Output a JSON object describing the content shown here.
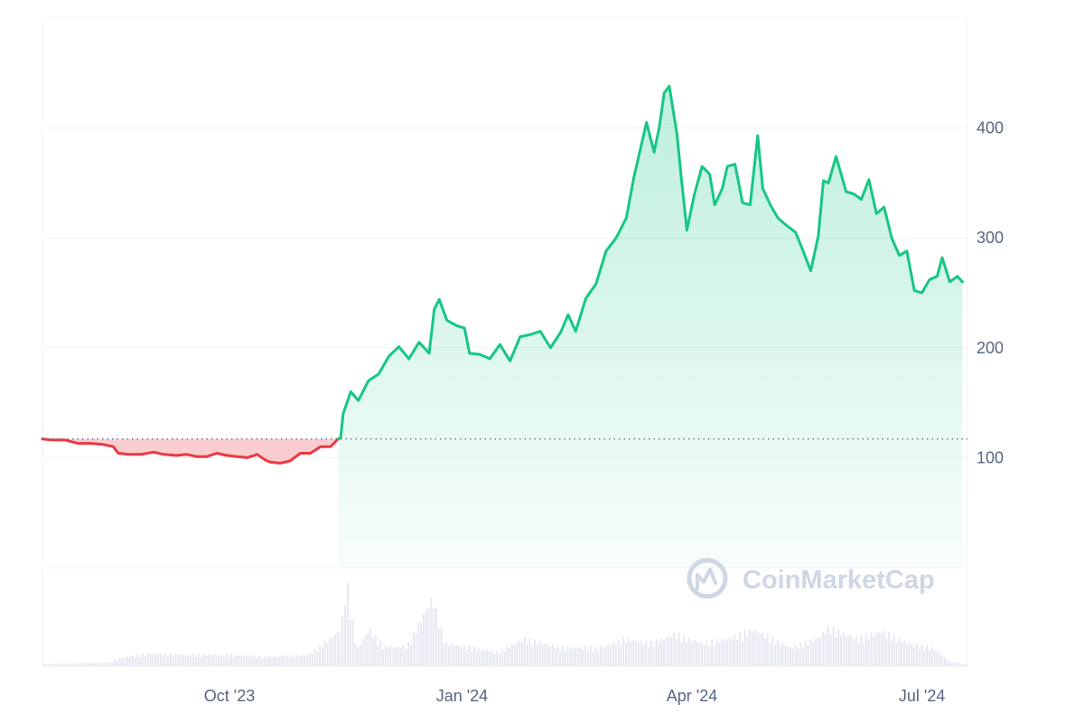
{
  "watermark": {
    "text": "CoinMarketCap",
    "icon": "coinmarketcap-logo-icon"
  },
  "colors": {
    "up_line": "#16c784",
    "down_line": "#ea3943",
    "up_fill": "#16c784",
    "down_fill": "#ea3943",
    "grid": "#eff2f5",
    "volume": "#cfd6e4",
    "baseline": "#58667e"
  },
  "chart_data": {
    "type": "area",
    "x_range": [
      "2023-07-19",
      "2024-07-19"
    ],
    "ylim": [
      0,
      500
    ],
    "grid": true,
    "legend": "none",
    "baseline": 117,
    "y_ticks": [
      {
        "value": 100,
        "label": "100"
      },
      {
        "value": 200,
        "label": "200"
      },
      {
        "value": 300,
        "label": "300"
      },
      {
        "value": 400,
        "label": "400"
      }
    ],
    "x_ticks": [
      {
        "date": "2023-10-01",
        "label": "Oct '23"
      },
      {
        "date": "2024-01-01",
        "label": "Jan '24"
      },
      {
        "date": "2024-04-01",
        "label": "Apr '24"
      },
      {
        "date": "2024-07-01",
        "label": "Jul '24"
      }
    ],
    "series": [
      {
        "values": [
          [
            "2023-07-19",
            117
          ],
          [
            "2023-07-23",
            116
          ],
          [
            "2023-07-28",
            116
          ],
          [
            "2023-08-02",
            113
          ],
          [
            "2023-08-07",
            113
          ],
          [
            "2023-08-12",
            112
          ],
          [
            "2023-08-16",
            110
          ],
          [
            "2023-08-18",
            104
          ],
          [
            "2023-08-22",
            103
          ],
          [
            "2023-08-27",
            103
          ],
          [
            "2023-09-01",
            105
          ],
          [
            "2023-09-05",
            103
          ],
          [
            "2023-09-10",
            102
          ],
          [
            "2023-09-14",
            103
          ],
          [
            "2023-09-18",
            101
          ],
          [
            "2023-09-22",
            101
          ],
          [
            "2023-09-26",
            104
          ],
          [
            "2023-09-30",
            102
          ],
          [
            "2023-10-04",
            101
          ],
          [
            "2023-10-08",
            100
          ],
          [
            "2023-10-12",
            103
          ],
          [
            "2023-10-15",
            98
          ],
          [
            "2023-10-17",
            96
          ],
          [
            "2023-10-21",
            95
          ],
          [
            "2023-10-25",
            97
          ],
          [
            "2023-10-29",
            104
          ],
          [
            "2023-11-02",
            104
          ],
          [
            "2023-11-06",
            110
          ],
          [
            "2023-11-10",
            110
          ],
          [
            "2023-11-13",
            117
          ],
          [
            "2023-11-14",
            118
          ],
          [
            "2023-11-15",
            140
          ],
          [
            "2023-11-18",
            160
          ],
          [
            "2023-11-21",
            152
          ],
          [
            "2023-11-25",
            170
          ],
          [
            "2023-11-29",
            176
          ],
          [
            "2023-12-03",
            192
          ],
          [
            "2023-12-07",
            201
          ],
          [
            "2023-12-11",
            190
          ],
          [
            "2023-12-15",
            205
          ],
          [
            "2023-12-19",
            195
          ],
          [
            "2023-12-21",
            235
          ],
          [
            "2023-12-23",
            244
          ],
          [
            "2023-12-26",
            225
          ],
          [
            "2023-12-30",
            220
          ],
          [
            "2024-01-02",
            218
          ],
          [
            "2024-01-04",
            195
          ],
          [
            "2024-01-08",
            194
          ],
          [
            "2024-01-12",
            190
          ],
          [
            "2024-01-16",
            203
          ],
          [
            "2024-01-20",
            188
          ],
          [
            "2024-01-24",
            210
          ],
          [
            "2024-01-28",
            212
          ],
          [
            "2024-02-01",
            215
          ],
          [
            "2024-02-05",
            200
          ],
          [
            "2024-02-09",
            214
          ],
          [
            "2024-02-12",
            230
          ],
          [
            "2024-02-15",
            215
          ],
          [
            "2024-02-19",
            245
          ],
          [
            "2024-02-23",
            258
          ],
          [
            "2024-02-27",
            288
          ],
          [
            "2024-03-02",
            300
          ],
          [
            "2024-03-06",
            318
          ],
          [
            "2024-03-09",
            355
          ],
          [
            "2024-03-12",
            385
          ],
          [
            "2024-03-14",
            405
          ],
          [
            "2024-03-17",
            378
          ],
          [
            "2024-03-19",
            400
          ],
          [
            "2024-03-21",
            432
          ],
          [
            "2024-03-23",
            438
          ],
          [
            "2024-03-26",
            395
          ],
          [
            "2024-03-28",
            350
          ],
          [
            "2024-03-30",
            307
          ],
          [
            "2024-04-02",
            340
          ],
          [
            "2024-04-05",
            365
          ],
          [
            "2024-04-08",
            358
          ],
          [
            "2024-04-10",
            330
          ],
          [
            "2024-04-13",
            345
          ],
          [
            "2024-04-15",
            365
          ],
          [
            "2024-04-18",
            367
          ],
          [
            "2024-04-21",
            332
          ],
          [
            "2024-04-24",
            330
          ],
          [
            "2024-04-27",
            393
          ],
          [
            "2024-04-29",
            345
          ],
          [
            "2024-05-02",
            330
          ],
          [
            "2024-05-05",
            318
          ],
          [
            "2024-05-08",
            312
          ],
          [
            "2024-05-12",
            305
          ],
          [
            "2024-05-15",
            288
          ],
          [
            "2024-05-18",
            270
          ],
          [
            "2024-05-21",
            302
          ],
          [
            "2024-05-23",
            352
          ],
          [
            "2024-05-25",
            350
          ],
          [
            "2024-05-28",
            374
          ],
          [
            "2024-06-01",
            342
          ],
          [
            "2024-06-04",
            340
          ],
          [
            "2024-06-07",
            335
          ],
          [
            "2024-06-10",
            353
          ],
          [
            "2024-06-13",
            322
          ],
          [
            "2024-06-16",
            328
          ],
          [
            "2024-06-19",
            300
          ],
          [
            "2024-06-22",
            284
          ],
          [
            "2024-06-25",
            288
          ],
          [
            "2024-06-28",
            252
          ],
          [
            "2024-07-01",
            250
          ],
          [
            "2024-07-04",
            262
          ],
          [
            "2024-07-07",
            265
          ],
          [
            "2024-07-09",
            282
          ],
          [
            "2024-07-12",
            260
          ],
          [
            "2024-07-15",
            265
          ],
          [
            "2024-07-17",
            260
          ]
        ]
      }
    ],
    "volume": {
      "values": [
        [
          "2023-07-19",
          0.02
        ],
        [
          "2023-08-14",
          0.04
        ],
        [
          "2023-08-20",
          0.1
        ],
        [
          "2023-09-01",
          0.14
        ],
        [
          "2023-09-15",
          0.12
        ],
        [
          "2023-10-01",
          0.12
        ],
        [
          "2023-10-15",
          0.1
        ],
        [
          "2023-11-01",
          0.12
        ],
        [
          "2023-11-14",
          0.4
        ],
        [
          "2023-11-16",
          0.93
        ],
        [
          "2023-11-20",
          0.18
        ],
        [
          "2023-11-25",
          0.4
        ],
        [
          "2023-12-01",
          0.2
        ],
        [
          "2023-12-10",
          0.22
        ],
        [
          "2023-12-20",
          0.75
        ],
        [
          "2023-12-25",
          0.25
        ],
        [
          "2024-01-05",
          0.2
        ],
        [
          "2024-01-15",
          0.15
        ],
        [
          "2024-01-25",
          0.3
        ],
        [
          "2024-02-10",
          0.2
        ],
        [
          "2024-02-25",
          0.2
        ],
        [
          "2024-03-05",
          0.3
        ],
        [
          "2024-03-15",
          0.25
        ],
        [
          "2024-03-25",
          0.35
        ],
        [
          "2024-04-05",
          0.25
        ],
        [
          "2024-04-15",
          0.3
        ],
        [
          "2024-04-25",
          0.4
        ],
        [
          "2024-05-10",
          0.2
        ],
        [
          "2024-05-20",
          0.3
        ],
        [
          "2024-05-25",
          0.42
        ],
        [
          "2024-06-05",
          0.3
        ],
        [
          "2024-06-15",
          0.38
        ],
        [
          "2024-06-25",
          0.25
        ],
        [
          "2024-07-05",
          0.2
        ],
        [
          "2024-07-12",
          0.04
        ],
        [
          "2024-07-19",
          0.02
        ]
      ]
    }
  }
}
